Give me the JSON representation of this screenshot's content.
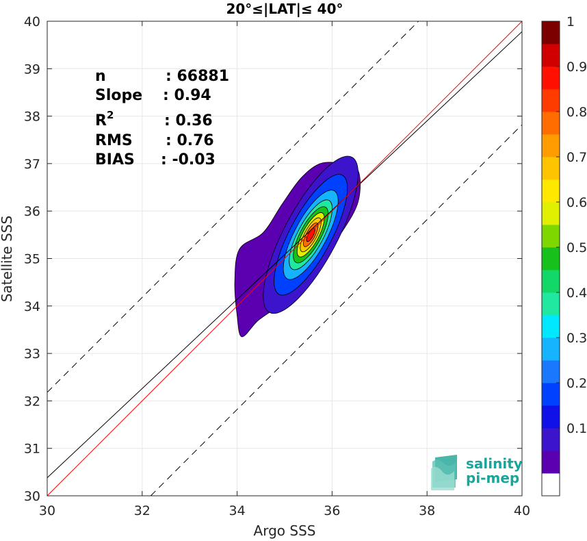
{
  "chart_data": {
    "type": "contour-scatter",
    "title": "20°≤|LAT|≤ 40°",
    "xlabel": "Argo SSS",
    "ylabel": "Satellite SSS",
    "xlim": [
      30,
      40
    ],
    "ylim": [
      30,
      40
    ],
    "xticks": [
      30,
      32,
      34,
      36,
      38,
      40
    ],
    "yticks": [
      30,
      31,
      32,
      33,
      34,
      35,
      36,
      37,
      38,
      39,
      40
    ],
    "grid": true,
    "stats": [
      {
        "label": "n",
        "value": ": 66881"
      },
      {
        "label": "Slope",
        "value": ": 0.94"
      },
      {
        "label": "R",
        "sup": "2",
        "value": ": 0.36"
      },
      {
        "label": "RMS",
        "value": ": 0.76"
      },
      {
        "label": "BIAS",
        "value": ": -0.03"
      }
    ],
    "lines": {
      "one_to_one": {
        "color": "#ff0000",
        "from": [
          30,
          30
        ],
        "to": [
          40,
          40
        ]
      },
      "regression": {
        "color": "#000000",
        "slope": 0.94,
        "intercept": 2.18
      },
      "bounds": {
        "color": "#000000",
        "dash": true,
        "offset": 2.18
      }
    },
    "density": {
      "peak": [
        35.55,
        35.5
      ],
      "angle_deg": 62,
      "levels": [
        0.05,
        0.15,
        0.25,
        0.35,
        0.45,
        0.55,
        0.65,
        0.75,
        0.85,
        0.95
      ],
      "outer_contour": [
        [
          34.1,
          33.35
        ],
        [
          34.45,
          33.7
        ],
        [
          34.95,
          34.05
        ],
        [
          35.35,
          34.4
        ],
        [
          35.75,
          35.0
        ],
        [
          36.2,
          35.55
        ],
        [
          36.55,
          36.2
        ],
        [
          36.55,
          36.85
        ],
        [
          36.2,
          37.0
        ],
        [
          35.75,
          37.0
        ],
        [
          35.35,
          36.7
        ],
        [
          34.95,
          36.15
        ],
        [
          34.55,
          35.55
        ],
        [
          34.05,
          35.2
        ],
        [
          33.95,
          34.5
        ],
        [
          34.0,
          33.8
        ]
      ],
      "contours": [
        {
          "level": 0.15,
          "a": 1.85,
          "b": 0.56
        },
        {
          "level": 0.25,
          "a": 1.42,
          "b": 0.44
        },
        {
          "level": 0.35,
          "a": 1.05,
          "b": 0.34
        },
        {
          "level": 0.45,
          "a": 0.82,
          "b": 0.27
        },
        {
          "level": 0.55,
          "a": 0.66,
          "b": 0.22
        },
        {
          "level": 0.65,
          "a": 0.52,
          "b": 0.17
        },
        {
          "level": 0.75,
          "a": 0.4,
          "b": 0.13
        },
        {
          "level": 0.85,
          "a": 0.28,
          "b": 0.092
        },
        {
          "level": 0.95,
          "a": 0.16,
          "b": 0.055
        }
      ]
    },
    "colorbar": {
      "ticks": [
        "0.1",
        "0.2",
        "0.3",
        "0.4",
        "0.5",
        "0.6",
        "0.7",
        "0.8",
        "0.9",
        "1"
      ],
      "tick_values": [
        0.1,
        0.2,
        0.3,
        0.4,
        0.5,
        0.6,
        0.7,
        0.8,
        0.9,
        1.0
      ],
      "colors": [
        "#ffffff",
        "#5a00b0",
        "#3b14cc",
        "#1010e8",
        "#0040ff",
        "#1a78ff",
        "#16b4ff",
        "#00e8ff",
        "#20e8a0",
        "#12d868",
        "#18c01c",
        "#7ed800",
        "#e0f000",
        "#ffe800",
        "#ffc400",
        "#ff9c00",
        "#ff6c00",
        "#ff3c00",
        "#ff1000",
        "#d00000",
        "#7c0000"
      ]
    }
  },
  "logo": {
    "line1": "salinity",
    "line2": "pi-mep"
  }
}
